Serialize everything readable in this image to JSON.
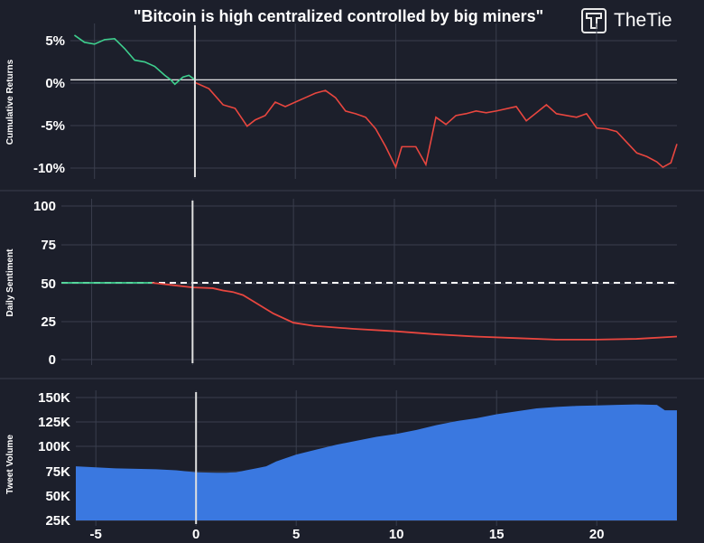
{
  "title": "\"Bitcoin is high centralized controlled by big miners\"",
  "brand": "TheTie",
  "colors": {
    "background": "#1c1f2b",
    "grid": "#3a3e4d",
    "up": "#3ecf8e",
    "down": "#e8463f",
    "volume": "#3a78e0",
    "marker": "#e0e0e0"
  },
  "chart_data": [
    {
      "type": "line",
      "name": "returns",
      "ylabel": "Cumulative Returns",
      "yticks": [
        "5%",
        "0%",
        "-5%",
        "-10%"
      ],
      "ylim": [
        -10.5,
        5.5
      ],
      "xlim": [
        -6.2,
        24
      ],
      "baseline": 0,
      "event_x": 0,
      "pre_event": {
        "x": [
          -6,
          -5.5,
          -5,
          -4.5,
          -4,
          -3.5,
          -3,
          -2.5,
          -2,
          -1.5,
          -1.2,
          -1,
          -0.6,
          -0.3,
          0
        ],
        "y": [
          5,
          4.2,
          4,
          4.5,
          4.6,
          3.5,
          2.2,
          2,
          1.5,
          0.5,
          0,
          -0.5,
          0.3,
          0.5,
          0
        ]
      },
      "post_event": {
        "x": [
          0,
          0.7,
          1.4,
          2,
          2.6,
          3,
          3.5,
          4,
          4.5,
          5,
          5.5,
          6,
          6.5,
          7,
          7.5,
          8,
          8.5,
          9,
          9.5,
          10,
          10.3,
          11,
          11.5,
          12,
          12.5,
          13,
          13.5,
          14,
          14.5,
          15,
          16,
          16.5,
          17,
          17.5,
          18,
          18.5,
          19,
          19.5,
          20,
          20.5,
          21,
          21.5,
          22,
          22.5,
          23,
          23.3,
          23.7,
          24
        ],
        "y": [
          -0.3,
          -1,
          -2.8,
          -3.2,
          -5.2,
          -4.5,
          -4,
          -2.5,
          -3,
          -2.5,
          -2,
          -1.5,
          -1.2,
          -2,
          -3.5,
          -3.8,
          -4.2,
          -5.5,
          -7.5,
          -9.8,
          -7.5,
          -7.5,
          -9.5,
          -4.2,
          -5,
          -4,
          -3.8,
          -3.5,
          -3.7,
          -3.5,
          -3,
          -4.6,
          -3.7,
          -2.8,
          -3.8,
          -4,
          -4.2,
          -3.8,
          -5.4,
          -5.5,
          -5.8,
          -7,
          -8.2,
          -8.6,
          -9.2,
          -9.8,
          -9.3,
          -7.2
        ]
      }
    },
    {
      "type": "line",
      "name": "sentiment",
      "ylabel": "Daily Sentiment",
      "yticks": [
        "100",
        "75",
        "50",
        "25",
        "0"
      ],
      "ylim": [
        0,
        100
      ],
      "xlim": [
        -6.5,
        24
      ],
      "reference_line": 50,
      "event_x": 0,
      "pre_event": {
        "x": [
          -6.5,
          -4,
          -2
        ],
        "y": [
          50,
          50,
          50
        ]
      },
      "post_event": {
        "x": [
          -2,
          -1,
          0,
          1,
          1.5,
          2,
          2.5,
          3,
          4,
          5,
          6,
          8,
          10,
          12,
          14,
          16,
          18,
          20,
          22,
          24
        ],
        "y": [
          50,
          48.5,
          47,
          46.5,
          45,
          44,
          42,
          38,
          30,
          24,
          22,
          20,
          18.5,
          16.5,
          15,
          14,
          13,
          13,
          13.5,
          15
        ]
      }
    },
    {
      "type": "area",
      "name": "volume",
      "ylabel": "Tweet Volume",
      "yticks": [
        "150K",
        "125K",
        "100K",
        "75K",
        "50K",
        "25K"
      ],
      "ylim": [
        25000,
        150000
      ],
      "xlim": [
        -6,
        24
      ],
      "xticks": [
        "-5",
        "0",
        "5",
        "10",
        "15",
        "20"
      ],
      "event_x": 0,
      "x": [
        -6,
        -5,
        -4,
        -3,
        -2,
        -1,
        0,
        1,
        1.5,
        2,
        2.5,
        3,
        3.5,
        4,
        5,
        6,
        7,
        8,
        9,
        10,
        11,
        12,
        13,
        14,
        15,
        16,
        17,
        18,
        19,
        20,
        21,
        22,
        23,
        23.4,
        24
      ],
      "y": [
        80000,
        79000,
        78000,
        77500,
        77000,
        76000,
        74000,
        73500,
        73500,
        74000,
        76000,
        78000,
        80000,
        85000,
        92000,
        97000,
        102000,
        106000,
        110000,
        113000,
        117000,
        122000,
        126000,
        129000,
        133000,
        136000,
        139000,
        140500,
        141500,
        142000,
        142500,
        143000,
        142500,
        137000,
        137000
      ]
    }
  ]
}
